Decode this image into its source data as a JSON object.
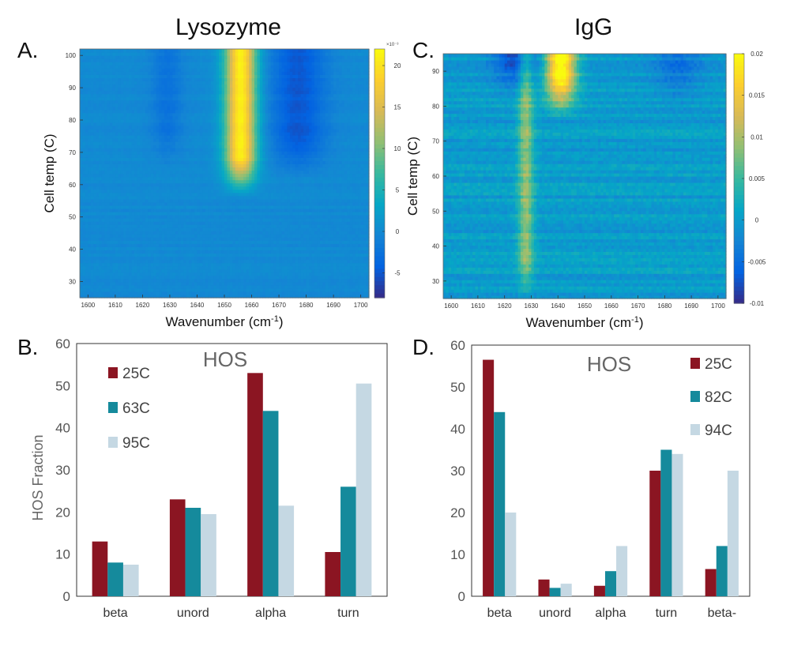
{
  "panels": {
    "A": {
      "letter": "A.",
      "title": "Lysozyme"
    },
    "B": {
      "letter": "B."
    },
    "C": {
      "letter": "C.",
      "title": "IgG"
    },
    "D": {
      "letter": "D."
    }
  },
  "colors": {
    "s25": "#8b1522",
    "s_mid": "#158a9c",
    "s_high": "#c5d8e3",
    "parula": [
      "#352a87",
      "#0363e1",
      "#1485d4",
      "#06a7c6",
      "#38b99e",
      "#92bf73",
      "#d9ba56",
      "#fcce2e",
      "#f9fb0e"
    ]
  },
  "chart_data": [
    {
      "id": "A",
      "type": "heatmap",
      "title": "Lysozyme",
      "xlabel": "Wavenumber (cm-1)",
      "ylabel": "Cell temp (C)",
      "xlim": [
        1597,
        1703
      ],
      "ylim": [
        25,
        102
      ],
      "xticks": [
        "1600",
        "1610",
        "1620",
        "1630",
        "1640",
        "1650",
        "1660",
        "1670",
        "1680",
        "1690",
        "1700"
      ],
      "yticks": [
        "30",
        "40",
        "50",
        "60",
        "70",
        "80",
        "90",
        "100"
      ],
      "colorbar": {
        "min": -0.008,
        "max": 0.022,
        "ticks": [
          "20",
          "15",
          "10",
          "5",
          "0",
          "-5"
        ],
        "exponent": "×10⁻³"
      },
      "features": [
        {
          "center": 1656,
          "width": 4,
          "amplitude": 0.021,
          "onset_temp": 60
        },
        {
          "center": 1677,
          "width": 7,
          "amplitude": -0.005,
          "onset_temp": 65
        },
        {
          "center": 1629,
          "width": 4,
          "amplitude": -0.0025,
          "onset_temp": 68
        }
      ]
    },
    {
      "id": "C",
      "type": "heatmap",
      "title": "IgG",
      "xlabel": "Wavenumber (cm-1)",
      "ylabel": "Cell temp (C)",
      "xlim": [
        1597,
        1703
      ],
      "ylim": [
        25,
        95
      ],
      "xticks": [
        "1600",
        "1610",
        "1620",
        "1630",
        "1640",
        "1650",
        "1660",
        "1670",
        "1680",
        "1690",
        "1700"
      ],
      "yticks": [
        "30",
        "40",
        "50",
        "60",
        "70",
        "80",
        "90"
      ],
      "colorbar": {
        "min": -0.01,
        "max": 0.02,
        "ticks": [
          "0.02",
          "0.015",
          "0.01",
          "0.005",
          "0",
          "-0.005",
          "-0.01"
        ]
      },
      "features": [
        {
          "center": 1641,
          "width": 4,
          "amplitude": 0.022,
          "onset_temp": 80
        },
        {
          "center": 1628,
          "width": 2,
          "amplitude": 0.009,
          "onset_temp": 28
        },
        {
          "center": 1625,
          "width": 6,
          "amplitude": -0.008,
          "onset_temp": 85
        },
        {
          "center": 1685,
          "width": 6,
          "amplitude": -0.004,
          "onset_temp": 82
        }
      ]
    },
    {
      "id": "B",
      "type": "bar",
      "title": "HOS",
      "ylabel": "HOS Fraction",
      "categories": [
        "beta",
        "unord",
        "alpha",
        "turn"
      ],
      "ylim": [
        0,
        60
      ],
      "yticks": [
        "0",
        "10",
        "20",
        "30",
        "40",
        "50",
        "60"
      ],
      "series": [
        {
          "name": "25C",
          "values": [
            13,
            23,
            53,
            10.5
          ]
        },
        {
          "name": "63C",
          "values": [
            8,
            21,
            44,
            26
          ]
        },
        {
          "name": "95C",
          "values": [
            7.5,
            19.5,
            21.5,
            50.5
          ]
        }
      ]
    },
    {
      "id": "D",
      "type": "bar",
      "title": "HOS",
      "categories": [
        "beta",
        "unord",
        "alpha",
        "turn",
        "beta-"
      ],
      "ylim": [
        0,
        60
      ],
      "yticks": [
        "0",
        "10",
        "20",
        "30",
        "40",
        "50",
        "60"
      ],
      "series": [
        {
          "name": "25C",
          "values": [
            56.5,
            4,
            2.5,
            30,
            6.5
          ]
        },
        {
          "name": "82C",
          "values": [
            44,
            2,
            6,
            35,
            12
          ]
        },
        {
          "name": "94C",
          "values": [
            20,
            3,
            12,
            34,
            30
          ]
        }
      ]
    }
  ]
}
